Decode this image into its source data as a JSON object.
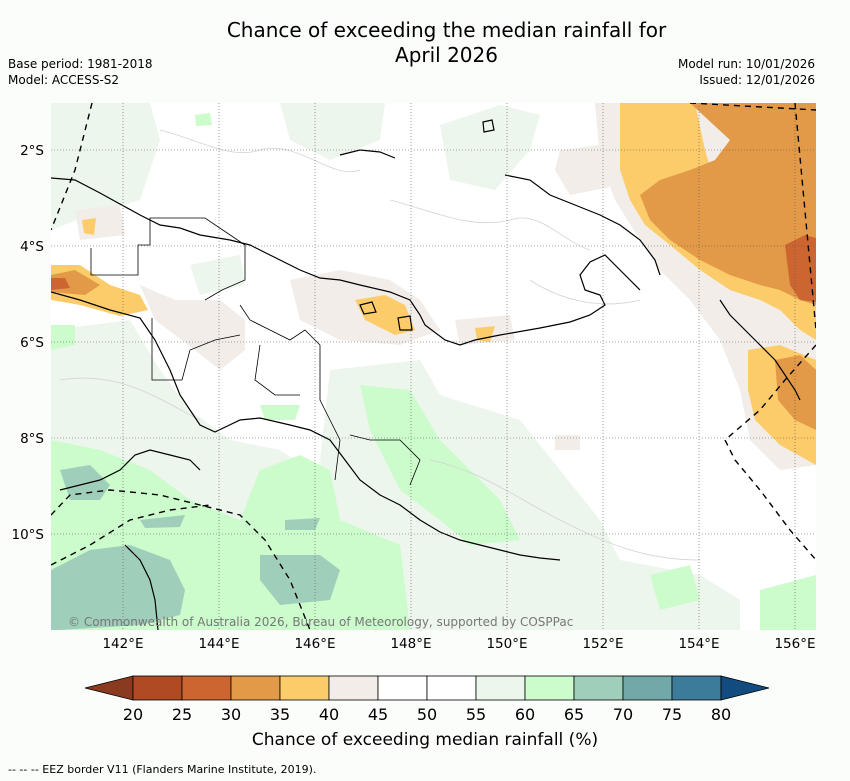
{
  "title_line1": "Chance of exceeding the median rainfall for",
  "title_line2": "April 2026",
  "base_period": "Base period: 1981-2018",
  "model": "Model: ACCESS-S2",
  "model_run": "Model run: 10/01/2026",
  "issued": "Issued: 12/01/2026",
  "lat_labels": [
    "2°S",
    "4°S",
    "6°S",
    "8°S",
    "10°S"
  ],
  "lon_labels": [
    "142°E",
    "144°E",
    "146°E",
    "148°E",
    "150°E",
    "152°E",
    "154°E",
    "156°E"
  ],
  "copyright": "© Commonwealth of Australia 2026, Bureau of Meteorology, supported by COSPPac",
  "colorbar": {
    "label": "Chance of exceeding median rainfall (%)",
    "ticks": [
      "20",
      "25",
      "30",
      "35",
      "40",
      "45",
      "50",
      "55",
      "60",
      "65",
      "70",
      "75",
      "80"
    ],
    "colors": {
      "lt20": "#8a3a1e",
      "c20_25": "#b04a24",
      "c25_30": "#cc6530",
      "c30_35": "#e29a48",
      "c35_40": "#fdcc6a",
      "c40_45": "#f2ede9",
      "c45_50": "#ffffff",
      "c50_55": "#ffffff",
      "c55_60": "#edf6ec",
      "c60_65": "#ccfbcc",
      "c65_70": "#9fcfbb",
      "c70_75": "#72a8a8",
      "c75_80": "#3c7b9a",
      "gt80": "#124b80"
    }
  },
  "footnote": "--  --  -- EEZ border V11 (Flanders Marine Institute, 2019)."
}
